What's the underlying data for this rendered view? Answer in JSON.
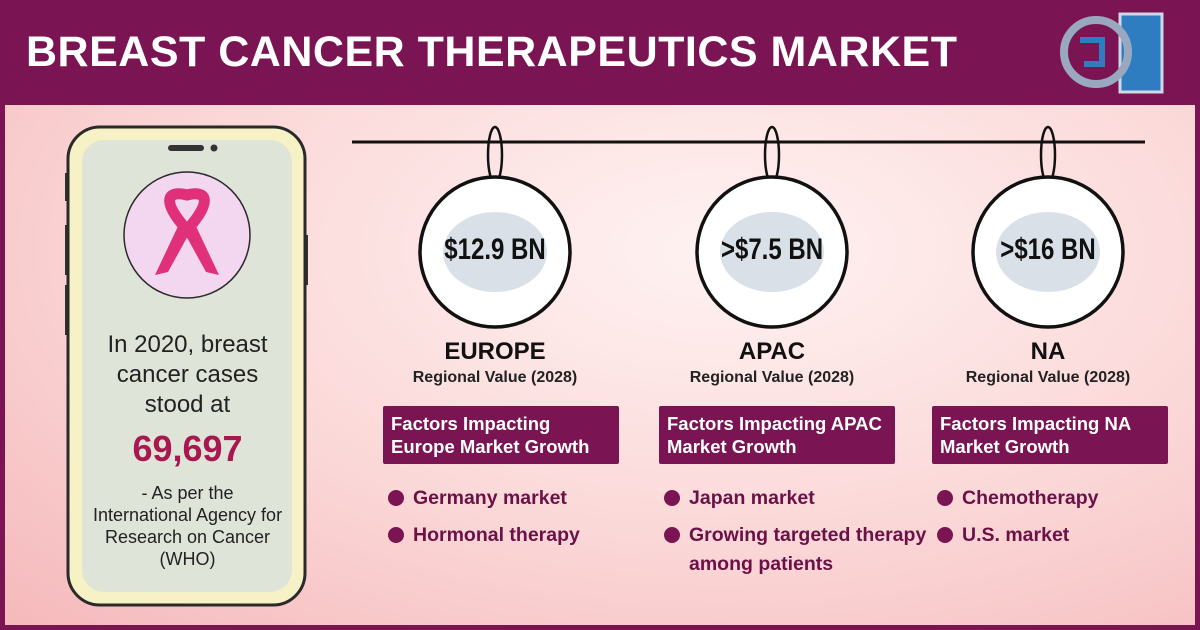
{
  "header": {
    "title": "BREAST CANCER THERAPEUTICS MARKET"
  },
  "phone": {
    "text": "In 2020, breast cancer cases stood at",
    "figure": "69,697",
    "source": "- As per the International Agency for Research on Cancer (WHO)"
  },
  "regions": [
    {
      "value": "$12.9 BN",
      "name": "EUROPE",
      "subtitle": "Regional Value (2028)",
      "factors_title": "Factors Impacting Europe Market Growth",
      "factors": [
        "Germany market",
        "Hormonal therapy"
      ]
    },
    {
      "value": ">$7.5 BN",
      "name": "APAC",
      "subtitle": "Regional Value (2028)",
      "factors_title": "Factors Impacting APAC Market Growth",
      "factors": [
        "Japan market",
        "Growing targeted therapy among patients"
      ]
    },
    {
      "value": ">$16 BN",
      "name": "NA",
      "subtitle": "Regional Value (2028)",
      "factors_title": "Factors Impacting NA Market Growth",
      "factors": [
        "Chemotherapy",
        "U.S. market"
      ]
    }
  ]
}
